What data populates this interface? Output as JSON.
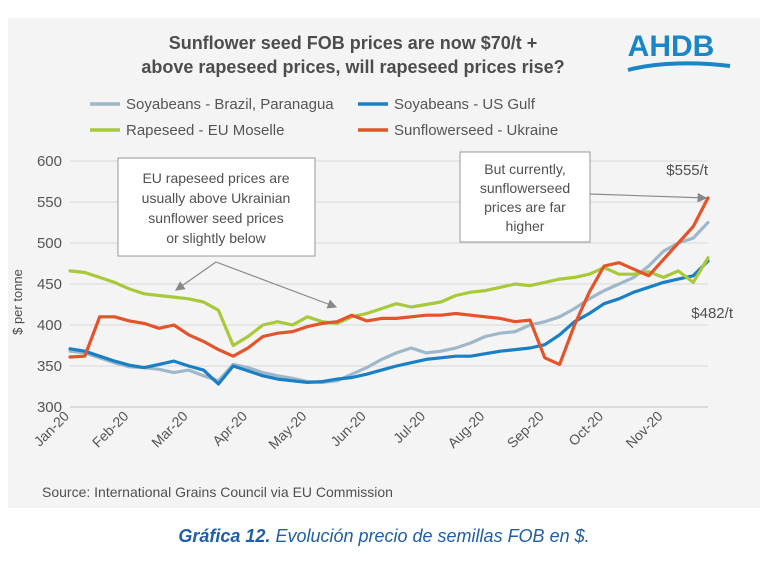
{
  "logo": {
    "text": "AHDB",
    "color": "#1a86c8"
  },
  "caption": {
    "label": "Gráfica 12.",
    "text": "Evolución precio de semillas FOB en $."
  },
  "chart_data": {
    "type": "line",
    "title": "Sunflower seed FOB prices are now $70/t + above rapeseed prices, will rapeseed prices rise?",
    "ylabel": "$ per tonne",
    "xlabel": "",
    "ylim": [
      300,
      600
    ],
    "yticks": [
      300,
      350,
      400,
      450,
      500,
      550,
      600
    ],
    "grid": true,
    "legend_position": "top",
    "x_tick_labels": [
      "Jan-20",
      "Feb-20",
      "Mar-20",
      "Apr-20",
      "May-20",
      "Jun-20",
      "Jul-20",
      "Aug-20",
      "Sep-20",
      "Oct-20",
      "Nov-20"
    ],
    "x_range": [
      0,
      10.75
    ],
    "source": "Source: International Grains Council via EU Commission",
    "series": [
      {
        "name": "Soyabeans - Brazil, Paranagua",
        "color": "#9eb8c9",
        "points": [
          [
            0,
            368
          ],
          [
            0.25,
            366
          ],
          [
            0.5,
            360
          ],
          [
            0.75,
            354
          ],
          [
            1,
            349
          ],
          [
            1.25,
            348
          ],
          [
            1.5,
            346
          ],
          [
            1.75,
            342
          ],
          [
            2,
            345
          ],
          [
            2.25,
            338
          ],
          [
            2.5,
            332
          ],
          [
            2.75,
            352
          ],
          [
            3,
            348
          ],
          [
            3.25,
            342
          ],
          [
            3.5,
            338
          ],
          [
            3.75,
            335
          ],
          [
            4,
            331
          ],
          [
            4.25,
            330
          ],
          [
            4.5,
            332
          ],
          [
            4.75,
            340
          ],
          [
            5,
            348
          ],
          [
            5.25,
            358
          ],
          [
            5.5,
            366
          ],
          [
            5.75,
            372
          ],
          [
            6,
            366
          ],
          [
            6.25,
            368
          ],
          [
            6.5,
            372
          ],
          [
            6.75,
            378
          ],
          [
            7,
            386
          ],
          [
            7.25,
            390
          ],
          [
            7.5,
            392
          ],
          [
            7.75,
            400
          ],
          [
            8,
            404
          ],
          [
            8.25,
            410
          ],
          [
            8.5,
            420
          ],
          [
            8.75,
            432
          ],
          [
            9,
            442
          ],
          [
            9.25,
            450
          ],
          [
            9.5,
            458
          ],
          [
            9.75,
            472
          ],
          [
            10,
            490
          ],
          [
            10.25,
            500
          ],
          [
            10.5,
            506
          ],
          [
            10.75,
            525
          ]
        ]
      },
      {
        "name": "Soyabeans - US Gulf",
        "color": "#1a7fc4",
        "points": [
          [
            0,
            371
          ],
          [
            0.25,
            368
          ],
          [
            0.5,
            362
          ],
          [
            0.75,
            356
          ],
          [
            1,
            351
          ],
          [
            1.25,
            348
          ],
          [
            1.5,
            352
          ],
          [
            1.75,
            356
          ],
          [
            2,
            350
          ],
          [
            2.25,
            345
          ],
          [
            2.5,
            328
          ],
          [
            2.75,
            350
          ],
          [
            3,
            344
          ],
          [
            3.25,
            338
          ],
          [
            3.5,
            334
          ],
          [
            3.75,
            332
          ],
          [
            4,
            330
          ],
          [
            4.25,
            331
          ],
          [
            4.5,
            334
          ],
          [
            4.75,
            336
          ],
          [
            5,
            340
          ],
          [
            5.25,
            345
          ],
          [
            5.5,
            350
          ],
          [
            5.75,
            354
          ],
          [
            6,
            358
          ],
          [
            6.25,
            360
          ],
          [
            6.5,
            362
          ],
          [
            6.75,
            362
          ],
          [
            7,
            365
          ],
          [
            7.25,
            368
          ],
          [
            7.5,
            370
          ],
          [
            7.75,
            372
          ],
          [
            8,
            376
          ],
          [
            8.25,
            388
          ],
          [
            8.5,
            404
          ],
          [
            8.75,
            414
          ],
          [
            9,
            426
          ],
          [
            9.25,
            432
          ],
          [
            9.5,
            440
          ],
          [
            9.75,
            446
          ],
          [
            10,
            452
          ],
          [
            10.25,
            456
          ],
          [
            10.5,
            460
          ],
          [
            10.75,
            478
          ]
        ]
      },
      {
        "name": "Rapeseed - EU Moselle",
        "color": "#a7c93a",
        "points": [
          [
            0,
            466
          ],
          [
            0.25,
            464
          ],
          [
            0.5,
            458
          ],
          [
            0.75,
            452
          ],
          [
            1,
            444
          ],
          [
            1.25,
            438
          ],
          [
            1.5,
            436
          ],
          [
            1.75,
            434
          ],
          [
            2,
            432
          ],
          [
            2.25,
            428
          ],
          [
            2.5,
            418
          ],
          [
            2.75,
            375
          ],
          [
            3,
            386
          ],
          [
            3.25,
            400
          ],
          [
            3.5,
            404
          ],
          [
            3.75,
            400
          ],
          [
            4,
            410
          ],
          [
            4.25,
            404
          ],
          [
            4.5,
            402
          ],
          [
            4.75,
            410
          ],
          [
            5,
            414
          ],
          [
            5.25,
            420
          ],
          [
            5.5,
            426
          ],
          [
            5.75,
            422
          ],
          [
            6,
            425
          ],
          [
            6.25,
            428
          ],
          [
            6.5,
            436
          ],
          [
            6.75,
            440
          ],
          [
            7,
            442
          ],
          [
            7.25,
            446
          ],
          [
            7.5,
            450
          ],
          [
            7.75,
            448
          ],
          [
            8,
            452
          ],
          [
            8.25,
            456
          ],
          [
            8.5,
            458
          ],
          [
            8.75,
            462
          ],
          [
            9,
            470
          ],
          [
            9.25,
            462
          ],
          [
            9.5,
            462
          ],
          [
            9.75,
            465
          ],
          [
            10,
            458
          ],
          [
            10.25,
            466
          ],
          [
            10.5,
            452
          ],
          [
            10.75,
            482
          ]
        ]
      },
      {
        "name": "Sunflowerseed - Ukraine",
        "color": "#e4532a",
        "points": [
          [
            0,
            361
          ],
          [
            0.25,
            362
          ],
          [
            0.5,
            410
          ],
          [
            0.75,
            410
          ],
          [
            1,
            405
          ],
          [
            1.25,
            402
          ],
          [
            1.5,
            396
          ],
          [
            1.75,
            400
          ],
          [
            2,
            388
          ],
          [
            2.25,
            380
          ],
          [
            2.5,
            370
          ],
          [
            2.75,
            362
          ],
          [
            3,
            372
          ],
          [
            3.25,
            386
          ],
          [
            3.5,
            390
          ],
          [
            3.75,
            392
          ],
          [
            4,
            398
          ],
          [
            4.25,
            402
          ],
          [
            4.5,
            404
          ],
          [
            4.75,
            412
          ],
          [
            5,
            405
          ],
          [
            5.25,
            408
          ],
          [
            5.5,
            408
          ],
          [
            5.75,
            410
          ],
          [
            6,
            412
          ],
          [
            6.25,
            412
          ],
          [
            6.5,
            414
          ],
          [
            6.75,
            412
          ],
          [
            7,
            410
          ],
          [
            7.25,
            408
          ],
          [
            7.5,
            404
          ],
          [
            7.75,
            406
          ],
          [
            8,
            360
          ],
          [
            8.25,
            352
          ],
          [
            8.5,
            400
          ],
          [
            8.75,
            440
          ],
          [
            9,
            472
          ],
          [
            9.25,
            476
          ],
          [
            9.5,
            468
          ],
          [
            9.75,
            460
          ],
          [
            10,
            480
          ],
          [
            10.25,
            500
          ],
          [
            10.5,
            520
          ],
          [
            10.75,
            555
          ]
        ]
      }
    ],
    "annotations": [
      {
        "id": "eu-note",
        "lines": [
          "EU rapeseed prices are",
          "usually above Ukrainian",
          "sunflower seed prices",
          "or slightly below"
        ]
      },
      {
        "id": "now-note",
        "lines": [
          "But currently,",
          "sunflowerseed",
          "prices are far",
          "higher"
        ]
      },
      {
        "id": "end-sunflower",
        "text": "$555/t"
      },
      {
        "id": "end-rapeseed",
        "text": "$482/t"
      }
    ]
  }
}
